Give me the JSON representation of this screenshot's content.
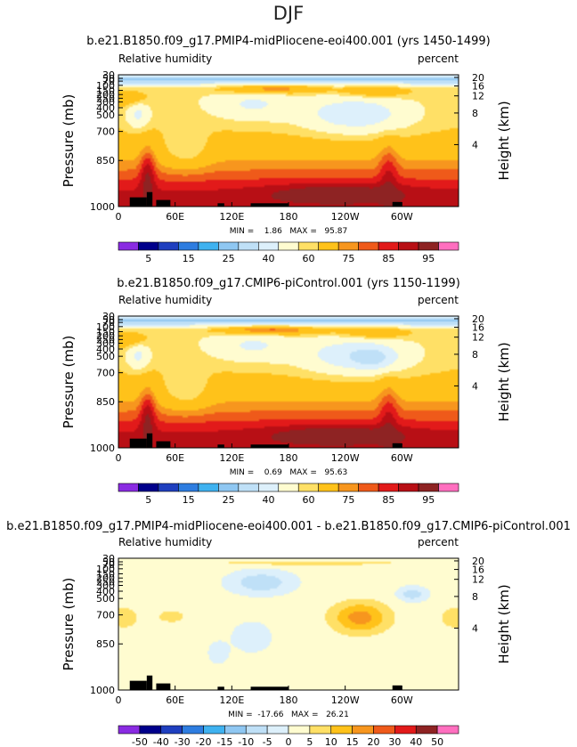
{
  "figure_title": "DJF",
  "chart_data": [
    {
      "type": "heatmap",
      "title": "b.e21.B1850.f09_g17.PMIP4-midPliocene-eoi400.001 (yrs 1450-1499)",
      "variable_label": "Relative humidity",
      "units_label": "percent",
      "ylabel": "Pressure (mb)",
      "ylabel_right": "Height (km)",
      "x_ticks": [
        "0",
        "60E",
        "120E",
        "180",
        "120W",
        "60W"
      ],
      "y_ticks": [
        "30",
        "50",
        "70",
        "100",
        "150",
        "200",
        "250",
        "300",
        "400",
        "500",
        "700",
        "850",
        "1000"
      ],
      "height_ticks": [
        "20",
        "16",
        "12",
        "8",
        "4"
      ],
      "stats": "MIN =    1.86   MAX =   95.87",
      "min": 1.86,
      "max": 95.87,
      "colorbar_labels": [
        "5",
        "15",
        "25",
        "40",
        "60",
        "75",
        "85",
        "95"
      ]
    },
    {
      "type": "heatmap",
      "title": "b.e21.B1850.f09_g17.CMIP6-piControl.001 (yrs 1150-1199)",
      "variable_label": "Relative humidity",
      "units_label": "percent",
      "ylabel": "Pressure (mb)",
      "ylabel_right": "Height (km)",
      "x_ticks": [
        "0",
        "60E",
        "120E",
        "180",
        "120W",
        "60W"
      ],
      "y_ticks": [
        "30",
        "50",
        "70",
        "100",
        "150",
        "200",
        "250",
        "300",
        "400",
        "500",
        "700",
        "850",
        "1000"
      ],
      "height_ticks": [
        "20",
        "16",
        "12",
        "8",
        "4"
      ],
      "stats": "MIN =    0.69   MAX =   95.63",
      "min": 0.69,
      "max": 95.63,
      "colorbar_labels": [
        "5",
        "15",
        "25",
        "40",
        "60",
        "75",
        "85",
        "95"
      ]
    },
    {
      "type": "heatmap",
      "title": "b.e21.B1850.f09_g17.PMIP4-midPliocene-eoi400.001 - b.e21.B1850.f09_g17.CMIP6-piControl.001",
      "variable_label": "Relative humidity",
      "units_label": "percent",
      "ylabel": "Pressure (mb)",
      "ylabel_right": "Height (km)",
      "x_ticks": [
        "0",
        "60E",
        "120E",
        "180",
        "120W",
        "60W"
      ],
      "y_ticks": [
        "30",
        "50",
        "70",
        "100",
        "150",
        "200",
        "250",
        "300",
        "400",
        "500",
        "700",
        "850",
        "1000"
      ],
      "height_ticks": [
        "20",
        "16",
        "12",
        "8",
        "4"
      ],
      "stats": "MIN =  -17.66   MAX =   26.21",
      "min": -17.66,
      "max": 26.21,
      "colorbar_labels": [
        "-50",
        "-40",
        "-30",
        "-20",
        "-15",
        "-10",
        "-5",
        "0",
        "5",
        "10",
        "15",
        "20",
        "30",
        "40",
        "50"
      ]
    }
  ],
  "colors": {
    "rh_scale": [
      "#8a2be2",
      "#00008b",
      "#1f3fbf",
      "#2e7de0",
      "#3fb2f0",
      "#8fc7f2",
      "#bfe0f7",
      "#ddf0fb",
      "#fffcd0",
      "#ffe066",
      "#ffc21a",
      "#f7961e",
      "#ef5a1a",
      "#e21a1a",
      "#b80f15",
      "#8e2323",
      "#ff6fbf"
    ],
    "diff_scale": [
      "#8a2be2",
      "#00008b",
      "#1f3fbf",
      "#2e7de0",
      "#3fb2f0",
      "#8fc7f2",
      "#bfe0f7",
      "#ddf0fb",
      "#fffcd0",
      "#ffe066",
      "#ffc21a",
      "#f7961e",
      "#ef5a1a",
      "#e21a1a",
      "#8e2323",
      "#ff6fbf"
    ],
    "topography": "#000000"
  }
}
